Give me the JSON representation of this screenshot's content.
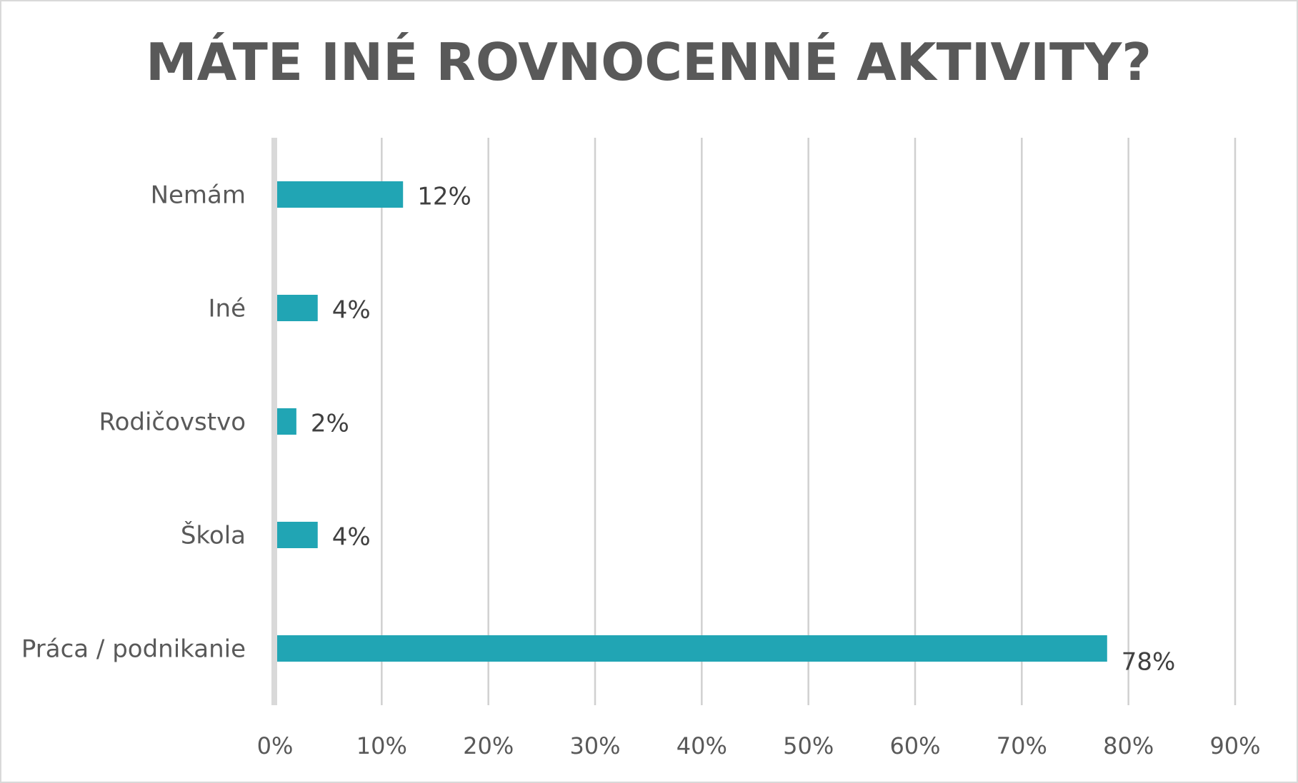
{
  "chart_data": {
    "type": "bar",
    "orientation": "horizontal",
    "title": "MÁTE INÉ ROVNOCENNÉ AKTIVITY?",
    "categories": [
      "Nemám",
      "Iné",
      "Rodičovstvo",
      "Škola",
      "Práca / podnikanie"
    ],
    "values": [
      12,
      4,
      2,
      4,
      78
    ],
    "data_labels": [
      "12%",
      "4%",
      "2%",
      "4%",
      "78%"
    ],
    "xlim": [
      0,
      90
    ],
    "xticks": [
      "0%",
      "10%",
      "20%",
      "30%",
      "40%",
      "50%",
      "60%",
      "70%",
      "80%",
      "90%"
    ],
    "grid": true,
    "legend": "none",
    "colors": {
      "bar": "#21a5b4",
      "grid": "#d0d0d0",
      "text": "#595959"
    }
  }
}
